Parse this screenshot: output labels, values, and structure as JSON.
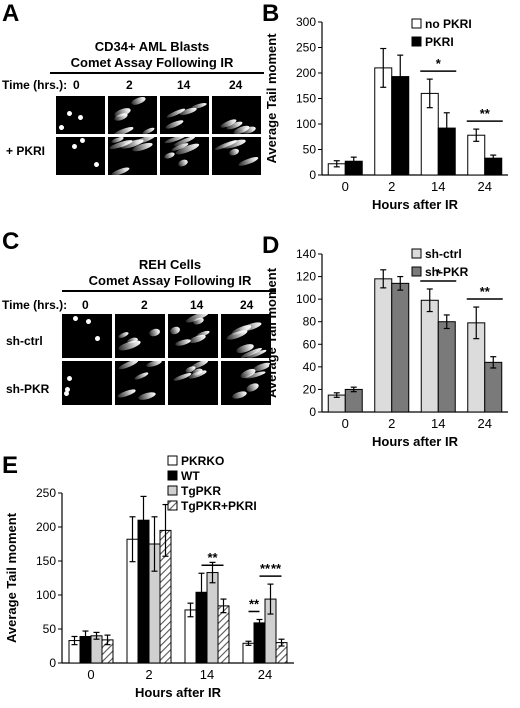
{
  "panel_labels": {
    "A": "A",
    "B": "B",
    "C": "C",
    "D": "D",
    "E": "E"
  },
  "panelA": {
    "title_line1": "CD34+ AML Blasts",
    "title_line2": "Comet Assay Following IR",
    "time_label": "Time (hrs.):",
    "times": [
      "0",
      "2",
      "14",
      "24"
    ],
    "row_label": "+ PKRI"
  },
  "panelC": {
    "title_line1": "REH Cells",
    "title_line2": "Comet Assay Following IR",
    "time_label": "Time (hrs.):",
    "times": [
      "0",
      "2",
      "14",
      "24"
    ],
    "rows": [
      "sh-ctrl",
      "sh-PKR"
    ]
  },
  "chart_data": [
    {
      "id": "B",
      "type": "bar",
      "categories": [
        "0",
        "2",
        "14",
        "24"
      ],
      "series": [
        {
          "name": "no PKRI",
          "values": [
            22,
            210,
            160,
            78
          ],
          "errors": [
            6,
            38,
            28,
            12
          ],
          "color": "#ffffff"
        },
        {
          "name": "PKRI",
          "values": [
            27,
            193,
            92,
            33
          ],
          "errors": [
            8,
            42,
            30,
            6
          ],
          "color": "#000000"
        }
      ],
      "xlabel": "Hours after IR",
      "ylabel": "Average Tail moment",
      "ylim": [
        0,
        300
      ],
      "yticks": [
        "0",
        "50",
        "100",
        "150",
        "200",
        "250",
        "300"
      ],
      "significance": [
        {
          "category": "14",
          "text": "*"
        },
        {
          "category": "24",
          "text": "**"
        }
      ],
      "legend": "top-right"
    },
    {
      "id": "D",
      "type": "bar",
      "categories": [
        "0",
        "2",
        "14",
        "24"
      ],
      "series": [
        {
          "name": "sh-ctrl",
          "values": [
            15,
            118,
            99,
            79
          ],
          "errors": [
            2,
            8,
            10,
            14
          ],
          "color": "#dcdcdc"
        },
        {
          "name": "sh-PKR",
          "values": [
            20,
            114,
            80,
            44
          ],
          "errors": [
            2,
            6,
            6,
            5
          ],
          "color": "#7a7a7a"
        }
      ],
      "xlabel": "Hours after IR",
      "ylabel": "Average Tail moment",
      "ylim": [
        0,
        140
      ],
      "yticks": [
        "0",
        "20",
        "40",
        "60",
        "80",
        "100",
        "120",
        "140"
      ],
      "significance": [
        {
          "category": "14",
          "text": "*"
        },
        {
          "category": "24",
          "text": "**"
        }
      ],
      "legend": "top-right"
    },
    {
      "id": "E",
      "type": "bar",
      "categories": [
        "0",
        "2",
        "14",
        "24"
      ],
      "series": [
        {
          "name": "PKRKO",
          "values": [
            33,
            182,
            78,
            29
          ],
          "errors": [
            6,
            33,
            10,
            3
          ],
          "color": "#ffffff",
          "pattern": "none"
        },
        {
          "name": "WT",
          "values": [
            39,
            210,
            104,
            59
          ],
          "errors": [
            8,
            35,
            28,
            5
          ],
          "color": "#000000",
          "pattern": "none"
        },
        {
          "name": "TgPKR",
          "values": [
            40,
            175,
            133,
            94
          ],
          "errors": [
            5,
            40,
            15,
            22
          ],
          "color": "#d0d0d0",
          "pattern": "none"
        },
        {
          "name": "TgPKR+PKRI",
          "values": [
            34,
            195,
            84,
            30
          ],
          "errors": [
            7,
            38,
            10,
            5
          ],
          "color": "#ffffff",
          "pattern": "hatch"
        }
      ],
      "xlabel": "Hours after IR",
      "ylabel": "Average Tail moment",
      "ylim": [
        0,
        250
      ],
      "yticks": [
        "0",
        "50",
        "100",
        "150",
        "200",
        "250"
      ],
      "significance": [
        {
          "text": "**",
          "from": [
            2,
            1
          ],
          "to": [
            2,
            3
          ]
        },
        {
          "text": "**",
          "from": [
            3,
            0
          ],
          "to": [
            3,
            1
          ]
        },
        {
          "text": "**",
          "from": [
            3,
            1
          ],
          "to": [
            3,
            2
          ]
        },
        {
          "text": "**",
          "from": [
            3,
            2
          ],
          "to": [
            3,
            3
          ]
        }
      ],
      "legend": "top-right"
    }
  ]
}
